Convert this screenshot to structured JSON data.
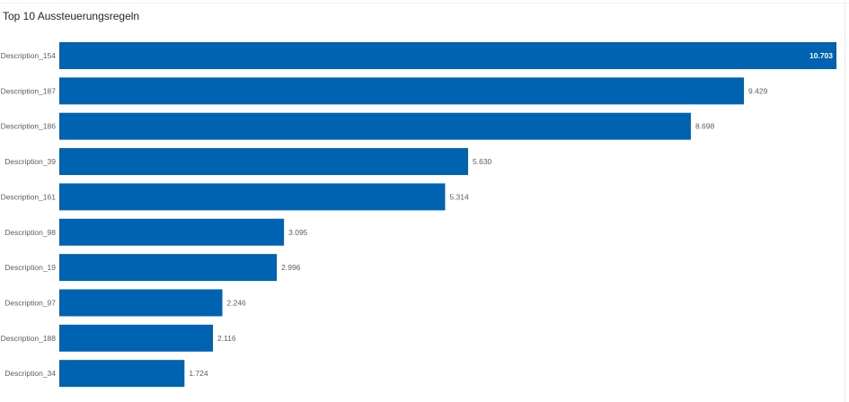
{
  "visual": {
    "title": "Top 10 Aussteuerungsregeln"
  },
  "colors": {
    "bar": "#0063B1",
    "label": "#605e5c",
    "inside_label": "#ffffff"
  },
  "chart_data": {
    "type": "bar",
    "orientation": "horizontal",
    "title": "Top 10 Aussteuerungsregeln",
    "xlabel": "",
    "ylabel": "",
    "grid": false,
    "legend": "none",
    "xlim": [
      0,
      10703
    ],
    "categories": [
      "Description_154",
      "Description_187",
      "Description_186",
      "Description_39",
      "Description_161",
      "Description_98",
      "Description_19",
      "Description_97",
      "Description_188",
      "Description_34"
    ],
    "values": [
      10703,
      9429,
      8698,
      5630,
      5314,
      3095,
      2996,
      2246,
      2116,
      1724
    ],
    "value_labels": [
      "10.703",
      "9.429",
      "8.698",
      "5.630",
      "5.314",
      "3.095",
      "2.996",
      "2.246",
      "2.116",
      "1.724"
    ]
  }
}
